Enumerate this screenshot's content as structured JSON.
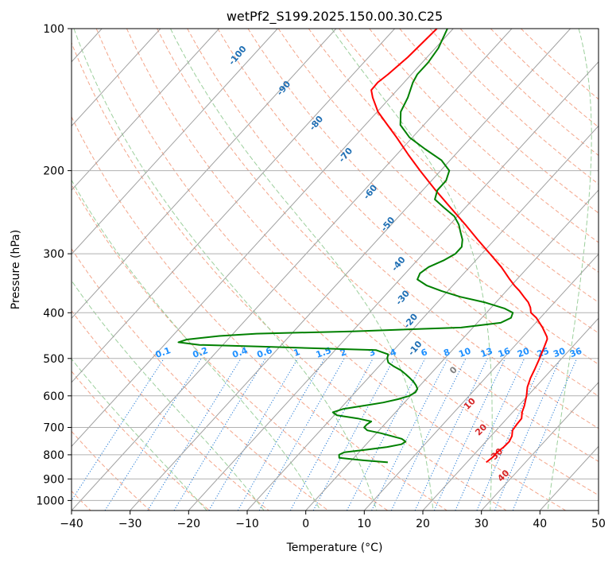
{
  "chart_data": {
    "type": "line",
    "subtype": "skew-t log-p diagram",
    "title": "wetPf2_S199.2025.150.00.30.C25",
    "xlabel": "Temperature (°C)",
    "ylabel": "Pressure (hPa)",
    "xlim": [
      -40,
      50
    ],
    "ylim": [
      1050,
      100
    ],
    "y_scale": "log",
    "grid": true,
    "x_ticks": [
      -40,
      -30,
      -20,
      -10,
      0,
      10,
      20,
      30,
      40,
      50
    ],
    "y_ticks": [
      100,
      200,
      300,
      400,
      500,
      600,
      700,
      800,
      900,
      1000
    ],
    "isotherm_interval_c": 10,
    "dry_adiabats_c": [
      -100,
      -90,
      -80,
      -70,
      -60,
      -50,
      -40,
      -30,
      -20,
      -10,
      0,
      10,
      20,
      30,
      40,
      50,
      60,
      70,
      80,
      90,
      100,
      110,
      120,
      130,
      140,
      150,
      160,
      170,
      180
    ],
    "moist_adiabats_c": [
      -20,
      -10,
      0,
      10,
      20,
      30,
      40
    ],
    "mixing_ratio_labels": [
      "0.1",
      "0.2",
      "0.4",
      "0.6",
      "1",
      "1.5",
      "2",
      "3",
      "4",
      "6",
      "8",
      "10",
      "13",
      "16",
      "20",
      "25",
      "30",
      "36"
    ],
    "dry_adiabat_labels": [
      {
        "text": "-100",
        "t": -82,
        "p": 115
      },
      {
        "text": "-90",
        "t": -69,
        "p": 135
      },
      {
        "text": "-80",
        "t": -58,
        "p": 160
      },
      {
        "text": "-70",
        "t": -48,
        "p": 187
      },
      {
        "text": "-60",
        "t": -38,
        "p": 224
      },
      {
        "text": "-50",
        "t": -30,
        "p": 262
      },
      {
        "text": "-40",
        "t": -22,
        "p": 318
      },
      {
        "text": "-30",
        "t": -16,
        "p": 375
      },
      {
        "text": "-20",
        "t": -11,
        "p": 420
      },
      {
        "text": "-10",
        "t": -6,
        "p": 480
      }
    ],
    "moist_adiabat_labels": [
      {
        "text": "0",
        "t": 4,
        "p": 535,
        "color": "#808080"
      },
      {
        "text": "10",
        "t": 12,
        "p": 630,
        "color": "#d62728"
      },
      {
        "text": "20",
        "t": 18,
        "p": 715,
        "color": "#d62728"
      },
      {
        "text": "30",
        "t": 24.5,
        "p": 805,
        "color": "#d62728"
      },
      {
        "text": "40",
        "t": 29,
        "p": 895,
        "color": "#d62728"
      }
    ],
    "series": [
      {
        "color": "#ff0000",
        "points": [
          {
            "p": 830,
            "t": 23.3
          },
          {
            "p": 810,
            "t": 23.6
          },
          {
            "p": 790,
            "t": 23.6
          },
          {
            "p": 770,
            "t": 23.9
          },
          {
            "p": 750,
            "t": 24.0
          },
          {
            "p": 730,
            "t": 23.6
          },
          {
            "p": 710,
            "t": 22.8
          },
          {
            "p": 690,
            "t": 22.6
          },
          {
            "p": 670,
            "t": 22.5
          },
          {
            "p": 650,
            "t": 21.6
          },
          {
            "p": 630,
            "t": 21.0
          },
          {
            "p": 600,
            "t": 19.8
          },
          {
            "p": 575,
            "t": 18.6
          },
          {
            "p": 550,
            "t": 17.7
          },
          {
            "p": 525,
            "t": 17.0
          },
          {
            "p": 500,
            "t": 16.2
          },
          {
            "p": 475,
            "t": 15.3
          },
          {
            "p": 455,
            "t": 14.5
          },
          {
            "p": 450,
            "t": 14.1
          },
          {
            "p": 430,
            "t": 11.9
          },
          {
            "p": 410,
            "t": 9.3
          },
          {
            "p": 400,
            "t": 7.6
          },
          {
            "p": 390,
            "t": 6.7
          },
          {
            "p": 380,
            "t": 5.5
          },
          {
            "p": 370,
            "t": 3.9
          },
          {
            "p": 360,
            "t": 2.3
          },
          {
            "p": 350,
            "t": 0.5
          },
          {
            "p": 340,
            "t": -1.2
          },
          {
            "p": 320,
            "t": -4.6
          },
          {
            "p": 300,
            "t": -8.6
          },
          {
            "p": 280,
            "t": -12.9
          },
          {
            "p": 260,
            "t": -17.4
          },
          {
            "p": 240,
            "t": -22.4
          },
          {
            "p": 220,
            "t": -27.8
          },
          {
            "p": 200,
            "t": -33.5
          },
          {
            "p": 185,
            "t": -38.0
          },
          {
            "p": 170,
            "t": -42.7
          },
          {
            "p": 160,
            "t": -46.2
          },
          {
            "p": 150,
            "t": -49.9
          },
          {
            "p": 140,
            "t": -53.0
          },
          {
            "p": 135,
            "t": -54.4
          },
          {
            "p": 130,
            "t": -54.5
          },
          {
            "p": 125,
            "t": -54.0
          },
          {
            "p": 115,
            "t": -53.3
          },
          {
            "p": 100,
            "t": -52.8
          }
        ]
      },
      {
        "color": "#008000",
        "points": [
          {
            "p": 830,
            "t": 6.5
          },
          {
            "p": 822,
            "t": 2.0
          },
          {
            "p": 812,
            "t": -2.5
          },
          {
            "p": 800,
            "t": -3.0
          },
          {
            "p": 790,
            "t": -2.5
          },
          {
            "p": 780,
            "t": 1.0
          },
          {
            "p": 770,
            "t": 4.0
          },
          {
            "p": 760,
            "t": 6.0
          },
          {
            "p": 750,
            "t": 6.3
          },
          {
            "p": 740,
            "t": 5.2
          },
          {
            "p": 730,
            "t": 3.0
          },
          {
            "p": 720,
            "t": 0.8
          },
          {
            "p": 710,
            "t": -2.0
          },
          {
            "p": 700,
            "t": -3.0
          },
          {
            "p": 690,
            "t": -3.0
          },
          {
            "p": 680,
            "t": -2.7
          },
          {
            "p": 670,
            "t": -5.5
          },
          {
            "p": 660,
            "t": -9.5
          },
          {
            "p": 650,
            "t": -10.7
          },
          {
            "p": 640,
            "t": -9.5
          },
          {
            "p": 630,
            "t": -6.5
          },
          {
            "p": 620,
            "t": -3.6
          },
          {
            "p": 610,
            "t": -1.6
          },
          {
            "p": 600,
            "t": -0.2
          },
          {
            "p": 590,
            "t": 0.3
          },
          {
            "p": 580,
            "t": 0.1
          },
          {
            "p": 570,
            "t": -0.7
          },
          {
            "p": 560,
            "t": -1.7
          },
          {
            "p": 550,
            "t": -2.9
          },
          {
            "p": 540,
            "t": -4.2
          },
          {
            "p": 530,
            "t": -5.6
          },
          {
            "p": 520,
            "t": -7.4
          },
          {
            "p": 510,
            "t": -9.0
          },
          {
            "p": 500,
            "t": -9.8
          },
          {
            "p": 490,
            "t": -10.3
          },
          {
            "p": 480,
            "t": -13.0
          },
          {
            "p": 472,
            "t": -33.0
          },
          {
            "p": 468,
            "t": -44.0
          },
          {
            "p": 462,
            "t": -48.0
          },
          {
            "p": 456,
            "t": -47.0
          },
          {
            "p": 448,
            "t": -42.0
          },
          {
            "p": 443,
            "t": -36.0
          },
          {
            "p": 438,
            "t": -20.0
          },
          {
            "p": 430,
            "t": -2.0
          },
          {
            "p": 420,
            "t": 4.0
          },
          {
            "p": 410,
            "t": 5.0
          },
          {
            "p": 400,
            "t": 4.5
          },
          {
            "p": 392,
            "t": 2.5
          },
          {
            "p": 380,
            "t": -2.0
          },
          {
            "p": 370,
            "t": -7.0
          },
          {
            "p": 360,
            "t": -11.0
          },
          {
            "p": 350,
            "t": -14.5
          },
          {
            "p": 340,
            "t": -17.0
          },
          {
            "p": 330,
            "t": -17.5
          },
          {
            "p": 320,
            "t": -17.0
          },
          {
            "p": 310,
            "t": -15.5
          },
          {
            "p": 300,
            "t": -14.5
          },
          {
            "p": 290,
            "t": -14.5
          },
          {
            "p": 280,
            "t": -15.5
          },
          {
            "p": 270,
            "t": -17.0
          },
          {
            "p": 260,
            "t": -18.5
          },
          {
            "p": 250,
            "t": -20.5
          },
          {
            "p": 240,
            "t": -23.5
          },
          {
            "p": 230,
            "t": -26.5
          },
          {
            "p": 220,
            "t": -27.5
          },
          {
            "p": 210,
            "t": -27.5
          },
          {
            "p": 200,
            "t": -28.5
          },
          {
            "p": 190,
            "t": -31.5
          },
          {
            "p": 180,
            "t": -36.0
          },
          {
            "p": 170,
            "t": -40.5
          },
          {
            "p": 160,
            "t": -44.0
          },
          {
            "p": 150,
            "t": -46.0
          },
          {
            "p": 140,
            "t": -47.0
          },
          {
            "p": 130,
            "t": -48.5
          },
          {
            "p": 125,
            "t": -49.0
          },
          {
            "p": 118,
            "t": -49.0
          },
          {
            "p": 110,
            "t": -49.5
          },
          {
            "p": 100,
            "t": -51.0
          }
        ]
      }
    ]
  },
  "colors": {
    "isobar_grid": "#b0b0b0",
    "isotherm": "#a0a0a0",
    "dry_adiabat": "#f4a58a",
    "moist_adiabat": "#9ccf9c",
    "mixing_ratio": "#1f77d4",
    "mixing_ratio_label": "#1e90ff",
    "dry_adiabat_label": "#1f6fb4",
    "temperature_profile": "#ff0000",
    "dewpoint_profile": "#008000"
  }
}
